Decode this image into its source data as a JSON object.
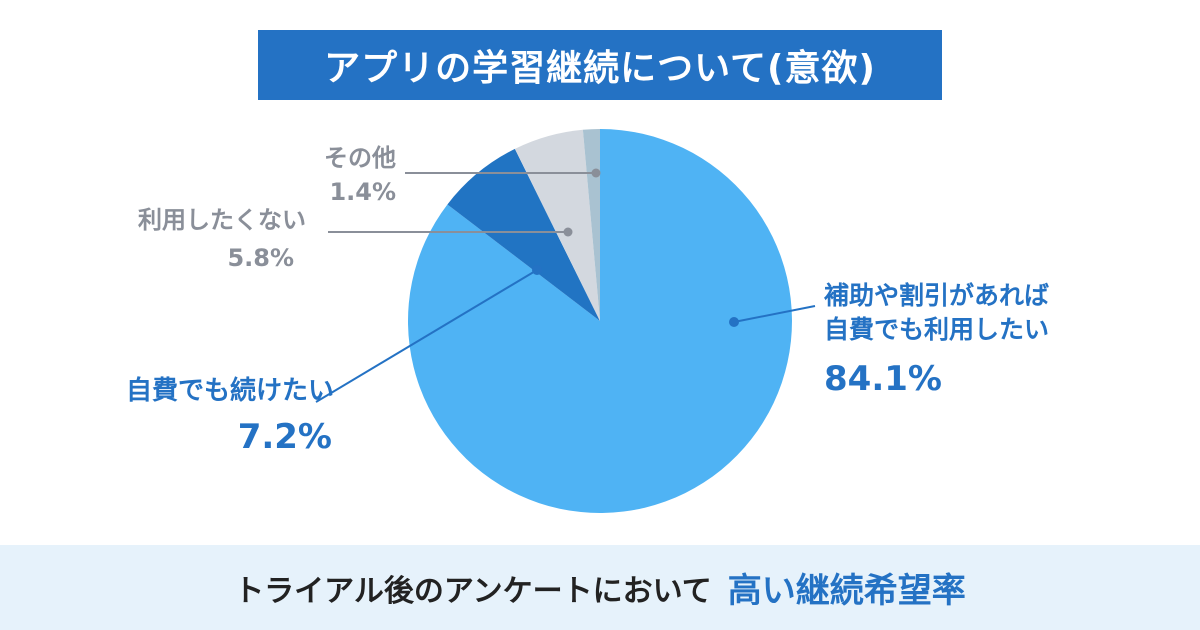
{
  "title": "アプリの学習継続について(意欲)",
  "footer": {
    "text": "トライアル後のアンケートにおいて",
    "highlight": "高い継続希望率"
  },
  "colors": {
    "brand": "#2472c4",
    "footer_bg": "#e6f2fb",
    "label_gray": "#8a8f99"
  },
  "chart_data": {
    "type": "pie",
    "start_angle_deg": 0,
    "direction": "clockwise",
    "slices": [
      {
        "label_lines": [
          "補助や割引があれば",
          "自費でも利用したい"
        ],
        "value_label": "84.1%",
        "value": 84.1,
        "color": "#4fb3f4"
      },
      {
        "label_lines": [
          "自費でも続けたい"
        ],
        "value_label": "7.2%",
        "value": 7.2,
        "color": "#2174c3"
      },
      {
        "label_lines": [
          "利用したくない"
        ],
        "value_label": "5.8%",
        "value": 5.8,
        "color": "#d3d8df"
      },
      {
        "label_lines": [
          "その他"
        ],
        "value_label": "1.4%",
        "value": 1.4,
        "color": "#a9c2d1"
      }
    ]
  }
}
